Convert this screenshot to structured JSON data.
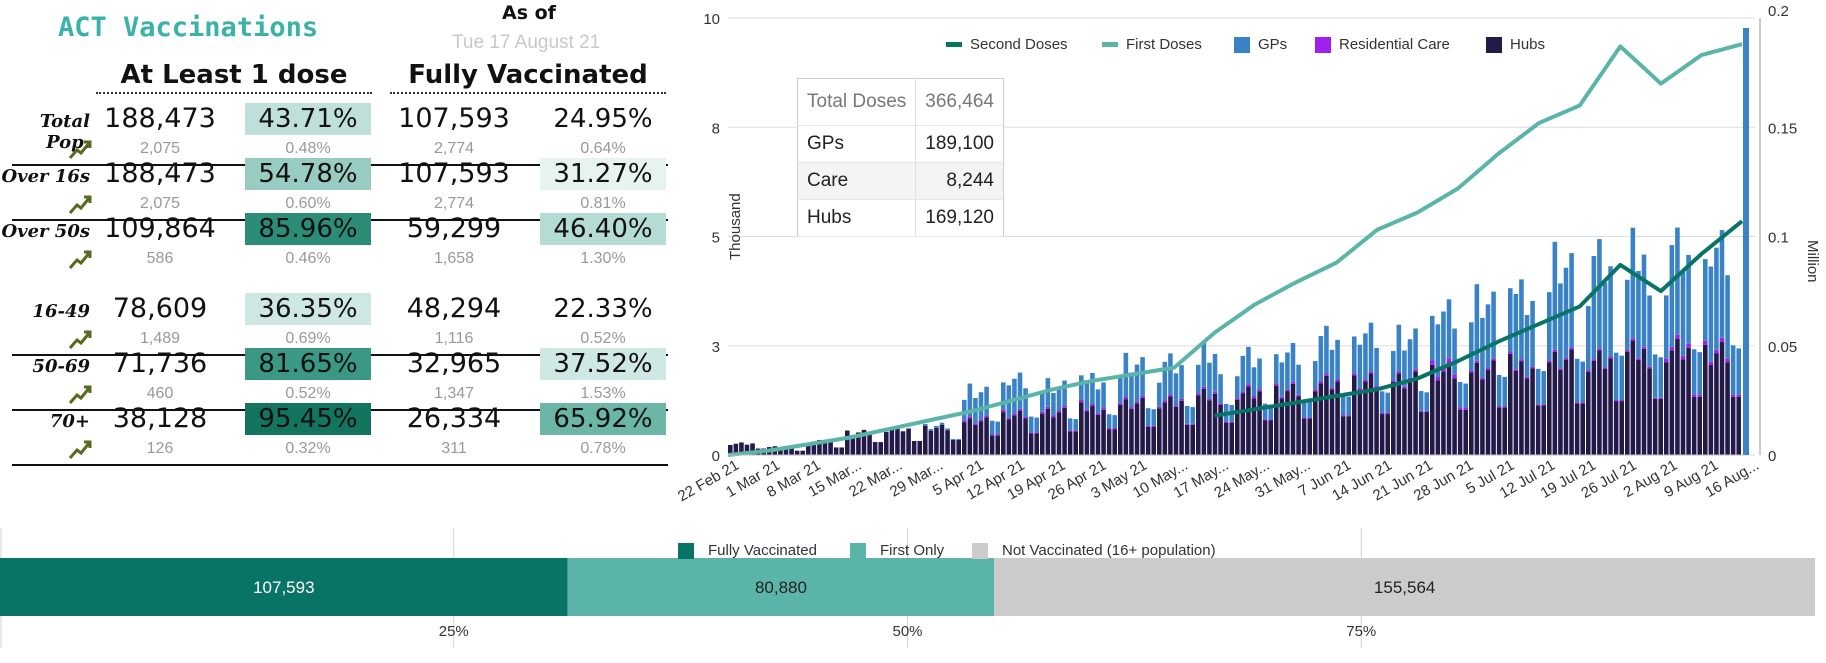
{
  "title": "ACT Vaccinations",
  "as_of_label": "As of",
  "as_of_date": "Tue 17 August 21",
  "columns": {
    "first": "At Least 1 dose",
    "full": "Fully Vaccinated"
  },
  "rows": [
    {
      "label": "Total Pop.",
      "first_num": "188,473",
      "first_pct": "43.71%",
      "first_delta": "2,075",
      "first_pct_delta": "0.48%",
      "full_num": "107,593",
      "full_pct": "24.95%",
      "full_delta": "2,774",
      "full_pct_delta": "0.64%",
      "first_color": "#bfe0da",
      "full_color": "#ffffff"
    },
    {
      "label": "Over 16s",
      "first_num": "188,473",
      "first_pct": "54.78%",
      "first_delta": "2,075",
      "first_pct_delta": "0.60%",
      "full_num": "107,593",
      "full_pct": "31.27%",
      "full_delta": "2,774",
      "full_pct_delta": "0.81%",
      "first_color": "#98ccc2",
      "full_color": "#e7f3f1"
    },
    {
      "label": "Over 50s",
      "first_num": "109,864",
      "first_pct": "85.96%",
      "first_delta": "586",
      "first_pct_delta": "0.46%",
      "full_num": "59,299",
      "full_pct": "46.40%",
      "full_delta": "1,658",
      "full_pct_delta": "1.30%",
      "first_color": "#2b8d78",
      "full_color": "#b5dcd4"
    },
    {
      "label": "16-49",
      "first_num": "78,609",
      "first_pct": "36.35%",
      "first_delta": "1,489",
      "first_pct_delta": "0.69%",
      "full_num": "48,294",
      "full_pct": "22.33%",
      "full_delta": "1,116",
      "full_pct_delta": "0.52%",
      "first_color": "#cde7e2",
      "full_color": "#ffffff"
    },
    {
      "label": "50-69",
      "first_num": "71,736",
      "first_pct": "81.65%",
      "first_delta": "460",
      "first_pct_delta": "0.52%",
      "full_num": "32,965",
      "full_pct": "37.52%",
      "full_delta": "1,347",
      "full_pct_delta": "1.53%",
      "first_color": "#3a9885",
      "full_color": "#cfe8e3"
    },
    {
      "label": "70+",
      "first_num": "38,128",
      "first_pct": "95.45%",
      "first_delta": "126",
      "first_pct_delta": "0.32%",
      "full_num": "26,334",
      "full_pct": "65.92%",
      "full_delta": "311",
      "full_pct_delta": "0.78%",
      "first_color": "#137560",
      "full_color": "#6cb6a7"
    }
  ],
  "colors": {
    "teal_dark": "#087466",
    "teal_light": "#5ab5a8",
    "gp": "#3a82c6",
    "care": "#a020f0",
    "hubs": "#241a4a",
    "grey": "#cccccc"
  },
  "table": {
    "header_label": "Total Doses",
    "header_value": "366,464",
    "rows": [
      {
        "label": "GPs",
        "value": "189,100"
      },
      {
        "label": "Care",
        "value": "8,244"
      },
      {
        "label": "Hubs",
        "value": "169,120"
      }
    ]
  },
  "chart_data": [
    {
      "type": "bar",
      "title": "",
      "ylabel": "Thousand",
      "y2label": "Million",
      "ylim": [
        0,
        10
      ],
      "y_ticks": [
        "10",
        "8",
        "5",
        "3",
        "0"
      ],
      "y2lim": [
        0,
        0.2
      ],
      "y2_ticks": [
        "0.2",
        "0.15",
        "0.1",
        "0.05",
        "0"
      ],
      "x_tick_labels": [
        "22 Feb 21",
        "1 Mar 21",
        "8 Mar 21",
        "15 Mar...",
        "22 Mar...",
        "29 Mar...",
        "5 Apr 21",
        "12 Apr 21",
        "19 Apr 21",
        "26 Apr 21",
        "3 May 21",
        "10 May...",
        "17 May...",
        "24 May...",
        "31 May...",
        "7 Jun 21",
        "14 Jun 21",
        "21 Jun 21",
        "28 Jun 21",
        "5 Jul 21",
        "12 Jul 21",
        "19 Jul 21",
        "26 Jul 21",
        "2 Aug 21",
        "9 Aug 21",
        "16 Aug..."
      ],
      "legend": [
        "Second Doses",
        "First Doses",
        "GPs",
        "Residential Care",
        "Hubs"
      ],
      "legend_position": "top",
      "stacked_series_weekly_avg_thousand": [
        {
          "name": "Hubs",
          "values": [
            0.3,
            0.2,
            0.35,
            0.6,
            0.65,
            0.7,
            0.9,
            1.0,
            1.1,
            1.2,
            1.3,
            1.4,
            1.5,
            1.6,
            1.7,
            1.8,
            1.9,
            2.0,
            2.1,
            2.2,
            2.3,
            2.4,
            2.5,
            2.6,
            2.7,
            2.7
          ]
        },
        {
          "name": "Residential Care",
          "values": [
            0,
            0,
            0,
            0,
            0,
            0,
            0.05,
            0.05,
            0.05,
            0.05,
            0.05,
            0.05,
            0.05,
            0.05,
            0.05,
            0.05,
            0.05,
            0.05,
            0.1,
            0.05,
            0.05,
            0.05,
            0.05,
            0.05,
            0.1,
            0.1
          ]
        },
        {
          "name": "GPs",
          "values": [
            0,
            0,
            0,
            0,
            0,
            0.05,
            0.7,
            0.8,
            0.6,
            0.7,
            0.9,
            0.9,
            0.9,
            0.8,
            0.9,
            1.0,
            1.1,
            1.0,
            1.3,
            1.6,
            1.8,
            2.2,
            2.4,
            2.2,
            2.3,
            2.5
          ]
        }
      ],
      "line_series_million": [
        {
          "name": "First Doses",
          "values": [
            0.0,
            0.002,
            0.005,
            0.008,
            0.012,
            0.016,
            0.02,
            0.025,
            0.03,
            0.034,
            0.037,
            0.04,
            0.056,
            0.069,
            0.079,
            0.088,
            0.103,
            0.111,
            0.122,
            0.138,
            0.152,
            0.16,
            0.187,
            0.17,
            0.183,
            0.188
          ]
        },
        {
          "name": "Second Doses",
          "values": [
            0,
            0,
            0,
            0,
            0,
            0,
            0,
            0,
            0,
            0,
            0,
            0,
            0.018,
            0.021,
            0.024,
            0.027,
            0.03,
            0.035,
            0.043,
            0.052,
            0.06,
            0.068,
            0.087,
            0.075,
            0.092,
            0.107
          ]
        }
      ]
    },
    {
      "type": "bar",
      "orientation": "horizontal-stacked",
      "title": "",
      "series": [
        {
          "name": "Fully Vaccinated",
          "value": 107593,
          "label": "107,593"
        },
        {
          "name": "First Only",
          "value": 80880,
          "label": "80,880"
        },
        {
          "name": "Not Vaccinated (16+ population)",
          "value": 155564,
          "label": "155,564"
        }
      ],
      "x_ticks": [
        "25%",
        "50%",
        "75%"
      ],
      "legend_position": "top"
    }
  ]
}
